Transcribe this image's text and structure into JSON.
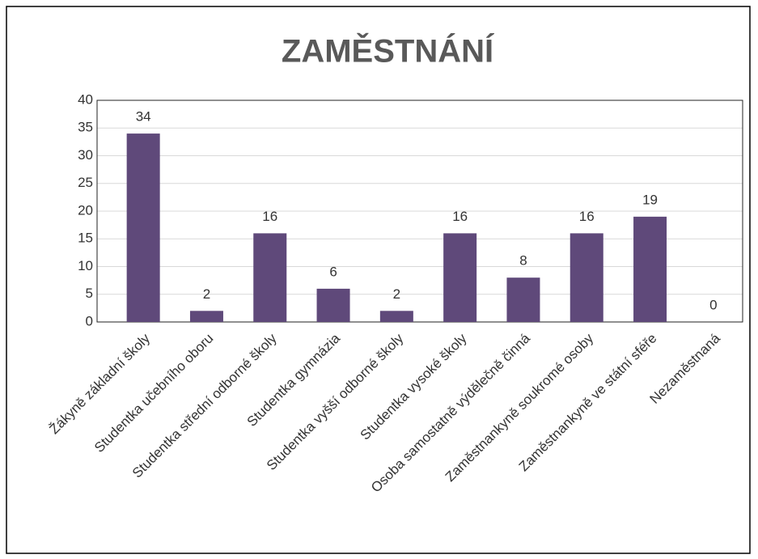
{
  "chart_data": {
    "type": "bar",
    "title": "ZAMĚSTNÁNÍ",
    "categories": [
      "Žákyně základní školy",
      "Studentka učebního oboru",
      "Studentka střední odborné školy",
      "Studentka gymnázia",
      "Studentka vyšší odborné školy",
      "Studentka vysoké školy",
      "Osoba samostatně výdělečně činná",
      "Zaměstnankyně soukromé osoby",
      "Zaměstnankyně ve státní sféře",
      "Nezaměstnaná"
    ],
    "values": [
      34,
      2,
      16,
      6,
      2,
      16,
      8,
      16,
      19,
      0
    ],
    "color": "#5f497a",
    "ylim": [
      0,
      40
    ],
    "yticks": [
      0,
      5,
      10,
      15,
      20,
      25,
      30,
      35,
      40
    ],
    "grid": true
  }
}
